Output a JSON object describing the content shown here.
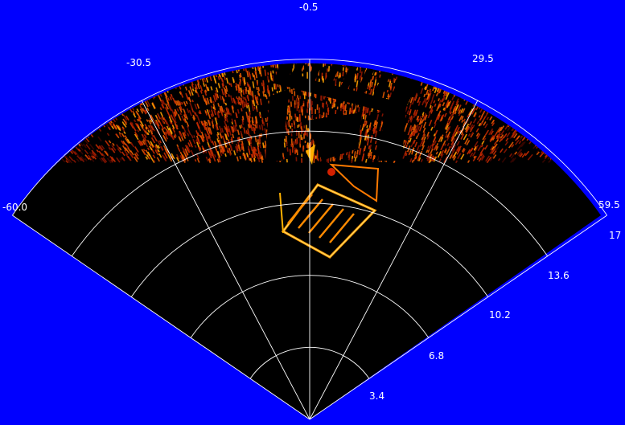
{
  "display": {
    "background_color": "#0000ff",
    "fan_color": "#000000",
    "grid_color": "#ffffff",
    "echo_colors": [
      "#3a0500",
      "#8a1400",
      "#c42a00",
      "#e85a00",
      "#ffa000",
      "#ffe070"
    ],
    "range_max_label": "17",
    "bearing_labels": {
      "left": "-60.0",
      "mid_left": "-30.5",
      "center": "-0.5",
      "mid_right": "29.5",
      "right": "59.5"
    },
    "range_labels": [
      "3.4",
      "6.8",
      "10.2",
      "13.6"
    ]
  }
}
